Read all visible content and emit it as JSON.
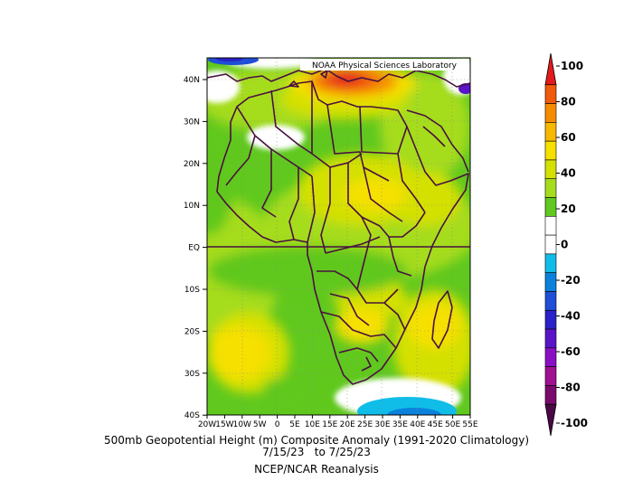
{
  "credit": "NOAA Physical Sciences Laboratory",
  "title_line1": "500mb Geopotential Height (m) Composite Anomaly (1991-2020 Climatology)",
  "title_line2": "7/15/23   to 7/25/23",
  "title_line3": "NCEP/NCAR Reanalysis",
  "lat_labels": [
    "40N",
    "30N",
    "20N",
    "10N",
    "EQ",
    "10S",
    "20S",
    "30S",
    "40S"
  ],
  "lon_labels": [
    "20W",
    "15W",
    "10W",
    "5W",
    "0",
    "5E",
    "10E",
    "15E",
    "20E",
    "25E",
    "30E",
    "35E",
    "40E",
    "45E",
    "50E",
    "55E"
  ],
  "colorbar": {
    "labels": [
      "100",
      "80",
      "60",
      "40",
      "20",
      "0",
      "-20",
      "-40",
      "-60",
      "-80",
      "-100"
    ],
    "colors": [
      "#e31a1c",
      "#f05a0c",
      "#f58c00",
      "#f7b800",
      "#f5e000",
      "#d4e000",
      "#a5dc1e",
      "#60c81e",
      "#ffffff",
      "#ffffff",
      "#10bde8",
      "#0a82dc",
      "#1e4fd6",
      "#2a22c8",
      "#5a14c8",
      "#8a0fc4",
      "#a01090",
      "#7a0a6e",
      "#4a0845"
    ]
  },
  "map": {
    "extent": {
      "lon": [
        -20,
        55
      ],
      "lat": [
        -40,
        45
      ]
    },
    "field_colors": {
      "green_bright": "#60c81e",
      "green_light": "#a5dc1e",
      "yellow_green": "#d4e000",
      "yellow": "#f5e000",
      "orange": "#f58c00",
      "red": "#e31a1c",
      "white": "#ffffff",
      "cyan": "#10bde8",
      "blue": "#0a82dc",
      "purple": "#2a22c8",
      "border": "#4a1040"
    }
  }
}
